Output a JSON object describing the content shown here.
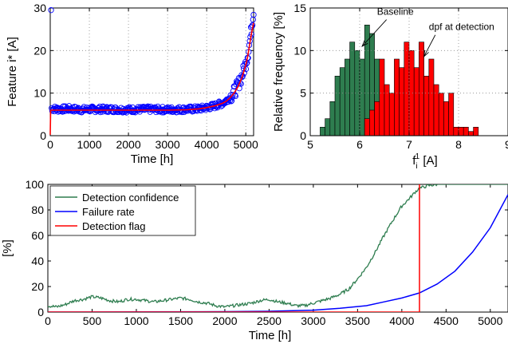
{
  "chart_data": [
    {
      "id": "feature",
      "type": "scatter",
      "xlabel": "Time [h]",
      "ylabel": "Feature i* [A]",
      "xlim": [
        0,
        5200
      ],
      "ylim": [
        0,
        30
      ],
      "xticks": [
        0,
        1000,
        2000,
        3000,
        4000,
        5000
      ],
      "yticks": [
        0,
        10,
        20,
        30
      ],
      "grid": true,
      "series": [
        {
          "kind": "markers",
          "color": "#0000ff",
          "points": [
            [
              30,
              6.4
            ],
            [
              200,
              6.2
            ],
            [
              500,
              6.3
            ],
            [
              800,
              6.1
            ],
            [
              1000,
              6.2
            ],
            [
              1500,
              6.2
            ],
            [
              2000,
              6.1
            ],
            [
              2500,
              6.2
            ],
            [
              3000,
              6.1
            ],
            [
              3500,
              6.2
            ],
            [
              3800,
              6.3
            ],
            [
              4000,
              6.6
            ],
            [
              4200,
              7.0
            ],
            [
              4400,
              7.6
            ],
            [
              4500,
              8.2
            ],
            [
              4600,
              9.0
            ],
            [
              4700,
              10.2
            ],
            [
              4800,
              11.8
            ],
            [
              4900,
              14.0
            ],
            [
              5000,
              17.0
            ],
            [
              5050,
              19.0
            ],
            [
              5100,
              22.0
            ],
            [
              5150,
              25.5
            ],
            [
              5200,
              29.5
            ]
          ],
          "spread": 1.4
        },
        {
          "kind": "line",
          "color": "#ff0000",
          "points": [
            [
              0,
              0.2
            ],
            [
              10,
              6.0
            ],
            [
              30,
              6.0
            ],
            [
              500,
              6.0
            ],
            [
              1000,
              6.0
            ],
            [
              1500,
              6.0
            ],
            [
              2000,
              6.0
            ],
            [
              2500,
              6.0
            ],
            [
              3000,
              6.0
            ],
            [
              3500,
              6.1
            ],
            [
              3800,
              6.3
            ],
            [
              4000,
              6.6
            ],
            [
              4200,
              7.0
            ],
            [
              4400,
              7.6
            ],
            [
              4500,
              8.1
            ],
            [
              4600,
              8.9
            ],
            [
              4700,
              10.0
            ],
            [
              4800,
              11.5
            ],
            [
              4900,
              13.6
            ],
            [
              5000,
              16.6
            ],
            [
              5050,
              18.6
            ],
            [
              5100,
              21.5
            ],
            [
              5150,
              24.2
            ],
            [
              5200,
              26.5
            ]
          ]
        }
      ]
    },
    {
      "id": "histogram",
      "type": "bar",
      "xlabel": "f_i^1 [A]",
      "ylabel": "Relative frequency [%]",
      "xlim": [
        5,
        9
      ],
      "ylim": [
        0,
        15
      ],
      "xticks": [
        5,
        6,
        7,
        8,
        9
      ],
      "yticks": [
        0,
        5,
        10,
        15
      ],
      "grid": true,
      "bin_width": 0.1,
      "series": [
        {
          "name": "Baseline",
          "color": "#2e7d4f",
          "bins": [
            [
              5.2,
              1
            ],
            [
              5.3,
              2
            ],
            [
              5.4,
              4
            ],
            [
              5.5,
              7
            ],
            [
              5.6,
              8
            ],
            [
              5.7,
              9
            ],
            [
              5.8,
              11
            ],
            [
              5.9,
              10
            ],
            [
              6.0,
              9
            ],
            [
              6.1,
              13
            ],
            [
              6.2,
              12
            ],
            [
              6.3,
              9
            ],
            [
              6.4,
              5
            ],
            [
              6.5,
              2
            ]
          ]
        },
        {
          "name": "dpf at detection",
          "color": "#ff0000",
          "bins": [
            [
              6.1,
              2
            ],
            [
              6.2,
              3
            ],
            [
              6.3,
              4
            ],
            [
              6.4,
              9
            ],
            [
              6.5,
              6
            ],
            [
              6.6,
              5
            ],
            [
              6.7,
              9
            ],
            [
              6.8,
              8
            ],
            [
              6.9,
              11
            ],
            [
              7.0,
              10
            ],
            [
              7.1,
              8
            ],
            [
              7.2,
              11
            ],
            [
              7.3,
              7
            ],
            [
              7.4,
              9
            ],
            [
              7.5,
              6
            ],
            [
              7.6,
              5
            ],
            [
              7.7,
              4
            ],
            [
              7.8,
              5
            ],
            [
              7.9,
              1
            ],
            [
              8.0,
              1
            ],
            [
              8.1,
              1
            ],
            [
              8.2,
              0.5
            ],
            [
              8.3,
              1
            ]
          ]
        }
      ],
      "annotations": [
        {
          "text": "Baseline",
          "x": 6.35,
          "y": 14.2,
          "arrow_to": [
            6.05,
            10.5
          ]
        },
        {
          "text": "dpf at detection",
          "x": 7.4,
          "y": 12.4,
          "arrow_to": [
            7.3,
            9.3
          ]
        }
      ]
    },
    {
      "id": "detection",
      "type": "line",
      "xlabel": "Time [h]",
      "ylabel": "[%]",
      "xlim": [
        0,
        5200
      ],
      "ylim": [
        0,
        100
      ],
      "xticks": [
        0,
        500,
        1000,
        1500,
        2000,
        2500,
        3000,
        3500,
        4000,
        4500,
        5000
      ],
      "yticks": [
        0,
        20,
        40,
        60,
        80,
        100
      ],
      "grid": false,
      "legend": "top-left",
      "series": [
        {
          "name": "Detection confidence",
          "color": "#2e7d4f",
          "points": [
            [
              0,
              5
            ],
            [
              100,
              4
            ],
            [
              200,
              6
            ],
            [
              300,
              9
            ],
            [
              400,
              10
            ],
            [
              500,
              12
            ],
            [
              600,
              11
            ],
            [
              700,
              9
            ],
            [
              800,
              8
            ],
            [
              900,
              10
            ],
            [
              1000,
              10
            ],
            [
              1100,
              9
            ],
            [
              1200,
              8
            ],
            [
              1300,
              9
            ],
            [
              1400,
              10
            ],
            [
              1500,
              11
            ],
            [
              1600,
              10
            ],
            [
              1700,
              8
            ],
            [
              1800,
              7
            ],
            [
              1900,
              5
            ],
            [
              2000,
              4
            ],
            [
              2100,
              5
            ],
            [
              2200,
              6
            ],
            [
              2300,
              7
            ],
            [
              2400,
              9
            ],
            [
              2500,
              10
            ],
            [
              2600,
              8
            ],
            [
              2700,
              7
            ],
            [
              2800,
              5
            ],
            [
              2900,
              5
            ],
            [
              3000,
              7
            ],
            [
              3100,
              9
            ],
            [
              3200,
              11
            ],
            [
              3300,
              14
            ],
            [
              3400,
              18
            ],
            [
              3500,
              26
            ],
            [
              3600,
              35
            ],
            [
              3700,
              47
            ],
            [
              3800,
              60
            ],
            [
              3900,
              72
            ],
            [
              4000,
              83
            ],
            [
              4100,
              90
            ],
            [
              4150,
              94
            ],
            [
              4200,
              97
            ],
            [
              4300,
              99
            ],
            [
              4400,
              100
            ]
          ],
          "noise": 1.2
        },
        {
          "name": "Failure rate",
          "color": "#0000ff",
          "points": [
            [
              0,
              0
            ],
            [
              1000,
              0.1
            ],
            [
              2000,
              0.3
            ],
            [
              2500,
              0.6
            ],
            [
              3000,
              1.5
            ],
            [
              3300,
              3
            ],
            [
              3600,
              5
            ],
            [
              3800,
              8
            ],
            [
              4000,
              11
            ],
            [
              4200,
              15
            ],
            [
              4400,
              22
            ],
            [
              4600,
              32
            ],
            [
              4800,
              47
            ],
            [
              5000,
              66
            ],
            [
              5200,
              92
            ]
          ]
        },
        {
          "name": "Detection flag",
          "color": "#ff0000",
          "points": [
            [
              0,
              0
            ],
            [
              4200,
              0
            ],
            [
              4200,
              100
            ]
          ]
        }
      ]
    }
  ]
}
